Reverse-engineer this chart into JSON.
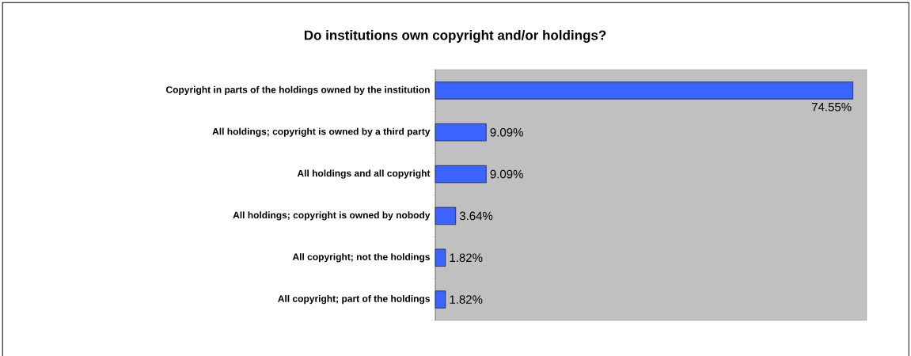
{
  "chart_data": {
    "type": "bar",
    "orientation": "horizontal",
    "title": "Do institutions own copyright and/or holdings?",
    "categories": [
      "Copyright in parts of the holdings owned by the institution",
      "All holdings; copyright is owned by a third party",
      "All holdings and all copyright",
      "All holdings; copyright is owned by nobody",
      "All copyright; not the holdings",
      "All copyright; part of the holdings"
    ],
    "values": [
      74.55,
      9.09,
      9.09,
      3.64,
      1.82,
      1.82
    ],
    "value_labels": [
      "74.55%",
      "9.09%",
      "9.09%",
      "3.64%",
      "1.82%",
      "1.82%"
    ],
    "color": "#3b63ff"
  }
}
